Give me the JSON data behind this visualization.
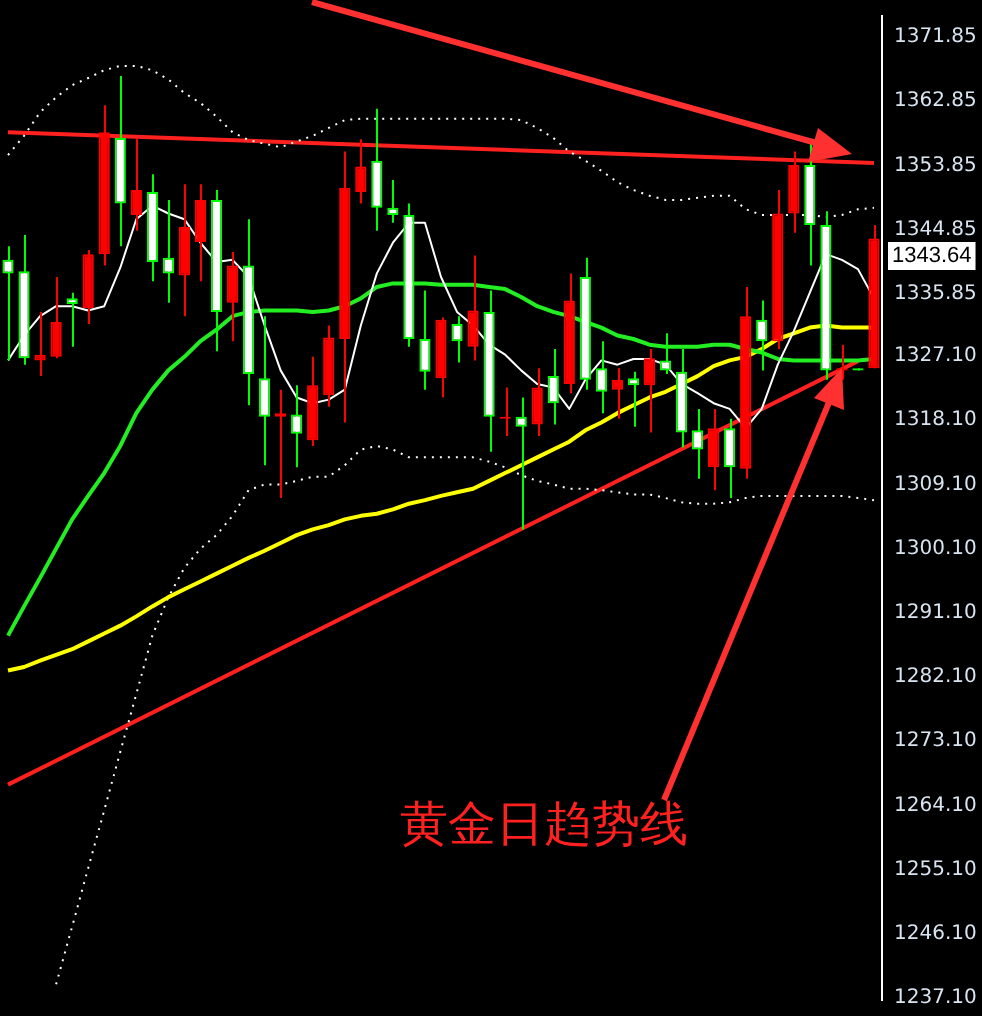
{
  "chart_data": {
    "type": "candlestick",
    "categories": [
      null,
      null,
      null,
      null,
      null,
      null,
      null,
      null,
      null,
      null,
      null,
      null,
      null,
      null,
      null,
      null,
      null,
      null,
      null,
      null,
      null,
      null,
      null,
      null,
      null,
      null,
      null,
      null,
      null,
      null,
      null,
      null,
      null,
      null,
      null,
      null,
      null,
      null,
      null,
      null,
      null,
      null,
      null,
      null,
      null,
      null,
      null,
      null,
      null,
      null,
      null,
      null,
      null,
      null,
      null
    ],
    "ohlc": [
      [
        1340.6,
        1342.5,
        1326.5,
        1338.7
      ],
      [
        1339.0,
        1344.1,
        1325.9,
        1326.8
      ],
      [
        1326.5,
        1333.3,
        1324.3,
        1327.3
      ],
      [
        1327.0,
        1338.2,
        1326.8,
        1331.9
      ],
      [
        1335.2,
        1336.0,
        1328.4,
        1334.4
      ],
      [
        1333.8,
        1342.0,
        1331.6,
        1341.4
      ],
      [
        1341.4,
        1362.3,
        1339.8,
        1358.5
      ],
      [
        1357.7,
        1366.4,
        1342.5,
        1348.5
      ],
      [
        1346.9,
        1357.7,
        1344.7,
        1350.4
      ],
      [
        1350.1,
        1352.6,
        1337.6,
        1340.3
      ],
      [
        1340.9,
        1349.0,
        1334.6,
        1338.7
      ],
      [
        1338.4,
        1351.2,
        1332.7,
        1345.2
      ],
      [
        1343.1,
        1351.2,
        1337.6,
        1349.0
      ],
      [
        1349.0,
        1350.4,
        1327.8,
        1333.3
      ],
      [
        1334.6,
        1341.7,
        1329.2,
        1339.8
      ],
      [
        1339.8,
        1346.3,
        1320.2,
        1324.6
      ],
      [
        1324.0,
        1332.7,
        1311.8,
        1318.6
      ],
      [
        1318.6,
        1322.4,
        1307.2,
        1319.1
      ],
      [
        1318.9,
        1323.0,
        1311.5,
        1316.2
      ],
      [
        1315.3,
        1327.0,
        1314.5,
        1323.0
      ],
      [
        1321.6,
        1331.4,
        1320.0,
        1329.7
      ],
      [
        1329.5,
        1355.8,
        1317.8,
        1350.7
      ],
      [
        1350.1,
        1357.5,
        1348.5,
        1353.7
      ],
      [
        1354.5,
        1361.8,
        1344.7,
        1347.9
      ],
      [
        1347.9,
        1351.8,
        1345.8,
        1346.9
      ],
      [
        1346.9,
        1348.5,
        1328.4,
        1329.5
      ],
      [
        1329.5,
        1336.3,
        1322.4,
        1324.9
      ],
      [
        1324.0,
        1332.5,
        1321.3,
        1332.2
      ],
      [
        1331.6,
        1332.7,
        1326.2,
        1329.2
      ],
      [
        1328.4,
        1341.2,
        1326.5,
        1333.5
      ],
      [
        1333.3,
        1336.3,
        1313.7,
        1318.6
      ],
      [
        1318.3,
        1322.7,
        1315.9,
        1318.6
      ],
      [
        1318.6,
        1321.3,
        1302.8,
        1317.2
      ],
      [
        1317.5,
        1325.4,
        1315.9,
        1322.7
      ],
      [
        1324.3,
        1328.1,
        1317.5,
        1320.5
      ],
      [
        1323.2,
        1338.7,
        1321.9,
        1334.9
      ],
      [
        1338.2,
        1340.9,
        1322.4,
        1323.8
      ],
      [
        1325.4,
        1329.2,
        1319.1,
        1322.1
      ],
      [
        1322.4,
        1325.4,
        1318.3,
        1323.8
      ],
      [
        1324.0,
        1324.9,
        1317.2,
        1323.0
      ],
      [
        1323.0,
        1328.1,
        1316.4,
        1326.8
      ],
      [
        1326.5,
        1330.3,
        1324.6,
        1325.1
      ],
      [
        1324.9,
        1328.1,
        1314.3,
        1316.4
      ],
      [
        1316.7,
        1319.7,
        1309.9,
        1314.0
      ],
      [
        1311.5,
        1319.7,
        1308.3,
        1317.0
      ],
      [
        1317.0,
        1318.3,
        1307.2,
        1311.5
      ],
      [
        1311.3,
        1336.8,
        1309.9,
        1332.7
      ],
      [
        1332.2,
        1334.9,
        1325.1,
        1329.2
      ],
      [
        1329.2,
        1350.4,
        1328.1,
        1347.1
      ],
      [
        1347.1,
        1355.8,
        1344.4,
        1353.9
      ],
      [
        1353.9,
        1357.2,
        1339.8,
        1345.5
      ],
      [
        1345.5,
        1347.4,
        1323.8,
        1325.1
      ],
      [
        1325.1,
        1328.7,
        1323.8,
        1325.4
      ],
      [
        1325.4,
        1325.4,
        1325.1,
        1325.1
      ],
      [
        1325.4,
        1345.5,
        1325.4,
        1343.6
      ]
    ],
    "colors": [
      "#00ff00",
      "#00ff00",
      "#ff0000",
      "#ff0000",
      "#00ff00",
      "#ff0000",
      "#ff0000",
      "#00ff00",
      "#ff0000",
      "#00ff00",
      "#00ff00",
      "#ff0000",
      "#ff0000",
      "#00ff00",
      "#ff0000",
      "#00ff00",
      "#00ff00",
      "#ff0000",
      "#00ff00",
      "#ff0000",
      "#ff0000",
      "#ff0000",
      "#ff0000",
      "#00ff00",
      "#00ff00",
      "#00ff00",
      "#00ff00",
      "#ff0000",
      "#00ff00",
      "#ff0000",
      "#00ff00",
      "#ff0000",
      "#00ff00",
      "#ff0000",
      "#00ff00",
      "#ff0000",
      "#00ff00",
      "#00ff00",
      "#ff0000",
      "#00ff00",
      "#ff0000",
      "#00ff00",
      "#00ff00",
      "#00ff00",
      "#ff0000",
      "#00ff00",
      "#ff0000",
      "#00ff00",
      "#ff0000",
      "#ff0000",
      "#00ff00",
      "#00ff00",
      "#ff0000",
      "#00ff00",
      "#ff0000"
    ],
    "series": [
      {
        "type": "line",
        "color": "#ffffff",
        "line_style": "solid",
        "values": [
          1326.5,
          1330.0,
          1332.7,
          1334.1,
          1334.1,
          1333.5,
          1334.1,
          1339.5,
          1346.3,
          1348.2,
          1347.1,
          1346.3,
          1343.0,
          1340.3,
          1340.6,
          1338.2,
          1331.4,
          1325.1,
          1321.3,
          1320.5,
          1321.0,
          1322.4,
          1331.4,
          1338.7,
          1343.0,
          1345.8,
          1345.8,
          1338.2,
          1333.3,
          1331.4,
          1328.7,
          1327.3,
          1325.1,
          1323.2,
          1322.7,
          1319.7,
          1323.8,
          1326.5,
          1325.9,
          1326.7,
          1326.7,
          1325.9,
          1323.2,
          1321.9,
          1320.5,
          1319.7,
          1317.0,
          1319.7,
          1325.9,
          1330.6,
          1336.0,
          1341.4,
          1340.6,
          1339.3,
          1335.2
        ]
      },
      {
        "type": "line",
        "color": "#22ee22",
        "line_style": "solid",
        "values": [
          1287.9,
          1292.0,
          1296.0,
          1300.1,
          1304.2,
          1307.5,
          1310.7,
          1314.5,
          1319.1,
          1322.4,
          1325.1,
          1327.0,
          1329.2,
          1330.8,
          1332.7,
          1333.3,
          1333.5,
          1333.5,
          1333.5,
          1333.3,
          1333.5,
          1334.1,
          1335.2,
          1336.8,
          1337.3,
          1337.3,
          1337.3,
          1337.1,
          1337.1,
          1337.1,
          1336.8,
          1336.5,
          1335.4,
          1334.1,
          1333.3,
          1332.7,
          1331.9,
          1331.1,
          1330.0,
          1329.5,
          1328.7,
          1328.4,
          1328.4,
          1328.4,
          1328.7,
          1328.7,
          1328.1,
          1327.6,
          1326.7,
          1326.5,
          1326.5,
          1326.5,
          1326.5,
          1326.5,
          1326.7
        ]
      },
      {
        "type": "line",
        "color": "#ffff00",
        "line_style": "solid",
        "values": [
          1283.0,
          1283.5,
          1284.4,
          1285.2,
          1286.0,
          1287.1,
          1288.2,
          1289.3,
          1290.6,
          1292.0,
          1293.3,
          1294.4,
          1295.5,
          1296.6,
          1297.7,
          1298.8,
          1299.8,
          1300.9,
          1302.0,
          1302.8,
          1303.4,
          1304.2,
          1304.7,
          1305.0,
          1305.6,
          1306.4,
          1306.9,
          1307.5,
          1308.0,
          1308.5,
          1309.6,
          1310.7,
          1311.8,
          1312.9,
          1314.0,
          1315.1,
          1316.7,
          1317.8,
          1319.1,
          1320.2,
          1321.3,
          1322.1,
          1323.2,
          1324.3,
          1325.7,
          1326.5,
          1327.0,
          1328.1,
          1329.5,
          1330.3,
          1331.1,
          1331.4,
          1331.1,
          1331.1,
          1331.1
        ]
      },
      {
        "type": "line",
        "color": "#ffffff",
        "line_style": "dotted",
        "values": [
          1355.3,
          1358.0,
          1361.3,
          1363.4,
          1365.1,
          1366.1,
          1367.2,
          1367.8,
          1367.8,
          1367.2,
          1365.9,
          1364.0,
          1362.6,
          1360.7,
          1358.5,
          1357.4,
          1356.9,
          1356.4,
          1357.2,
          1358.0,
          1359.1,
          1360.2,
          1360.4,
          1360.4,
          1360.4,
          1360.4,
          1360.4,
          1360.4,
          1360.4,
          1360.4,
          1360.4,
          1360.4,
          1360.2,
          1359.1,
          1357.7,
          1355.8,
          1354.5,
          1353.1,
          1351.5,
          1350.4,
          1349.6,
          1349.0,
          1349.0,
          1349.3,
          1349.6,
          1349.6,
          1347.7,
          1346.9,
          1346.9,
          1346.9,
          1346.9,
          1346.6,
          1346.9,
          1347.7,
          1347.9
        ]
      },
      {
        "type": "line",
        "color": "#ffffff",
        "line_style": "dotted",
        "values": [
          null,
          null,
          null,
          1239.0,
          1247.1,
          1255.3,
          1263.4,
          1271.6,
          1279.7,
          1287.9,
          1293.3,
          1297.4,
          1300.1,
          1302.0,
          1304.7,
          1308.3,
          1309.1,
          1309.1,
          1309.6,
          1310.2,
          1310.2,
          1311.8,
          1314.0,
          1314.5,
          1314.0,
          1312.9,
          1312.9,
          1312.9,
          1312.9,
          1312.9,
          1312.3,
          1311.5,
          1310.4,
          1309.6,
          1309.1,
          1308.5,
          1308.5,
          1308.3,
          1308.0,
          1307.7,
          1307.7,
          1307.2,
          1306.6,
          1306.4,
          1306.4,
          1306.6,
          1307.2,
          1307.5,
          1307.5,
          1307.5,
          1307.5,
          1307.5,
          1307.5,
          1307.2,
          1306.9
        ]
      },
      {
        "type": "line",
        "color": "#ff2020",
        "line_style": "solid",
        "values": [
          1358.5,
          null,
          null,
          null,
          null,
          null,
          null,
          null,
          null,
          null,
          null,
          null,
          null,
          null,
          null,
          null,
          null,
          null,
          null,
          null,
          null,
          null,
          null,
          null,
          null,
          null,
          null,
          null,
          null,
          null,
          null,
          null,
          null,
          null,
          null,
          null,
          null,
          null,
          null,
          null,
          null,
          null,
          null,
          null,
          null,
          null,
          null,
          null,
          null,
          null,
          null,
          null,
          null,
          null,
          1354.2
        ]
      },
      {
        "type": "line",
        "color": "#ff2020",
        "line_style": "solid",
        "values": [
          1267.0,
          null,
          null,
          null,
          null,
          null,
          null,
          null,
          null,
          null,
          null,
          null,
          null,
          null,
          null,
          null,
          null,
          null,
          null,
          null,
          null,
          null,
          null,
          null,
          null,
          null,
          null,
          null,
          null,
          null,
          null,
          null,
          null,
          null,
          null,
          null,
          null,
          null,
          null,
          null,
          null,
          null,
          null,
          null,
          null,
          null,
          null,
          null,
          null,
          null,
          null,
          null,
          null,
          1326.4,
          null
        ]
      }
    ],
    "ylim": [
      1236.8,
      1374.8
    ],
    "yticks": [
      1371.85,
      1362.85,
      1353.85,
      1344.85,
      1335.85,
      {
        "value": 1327.1,
        "label": "1327.10"
      },
      {
        "value": 1318.1,
        "label": "1318.10"
      },
      {
        "value": 1309.1,
        "label": "1309.10"
      },
      {
        "value": 1300.1,
        "label": "1300.10"
      },
      {
        "value": 1291.1,
        "label": "1291.10"
      },
      {
        "value": 1282.1,
        "label": "1282.10"
      },
      {
        "value": 1273.1,
        "label": "1273.10"
      },
      {
        "value": 1264.1,
        "label": "1264.10"
      },
      {
        "value": 1255.1,
        "label": "1255.10"
      },
      {
        "value": 1246.1,
        "label": "1246.10"
      },
      {
        "value": 1237.1,
        "label": "1237.10"
      }
    ],
    "annotations": [
      "黄金日趋势线",
      "1343.64"
    ],
    "legend": false,
    "tick_labels": "y"
  }
}
